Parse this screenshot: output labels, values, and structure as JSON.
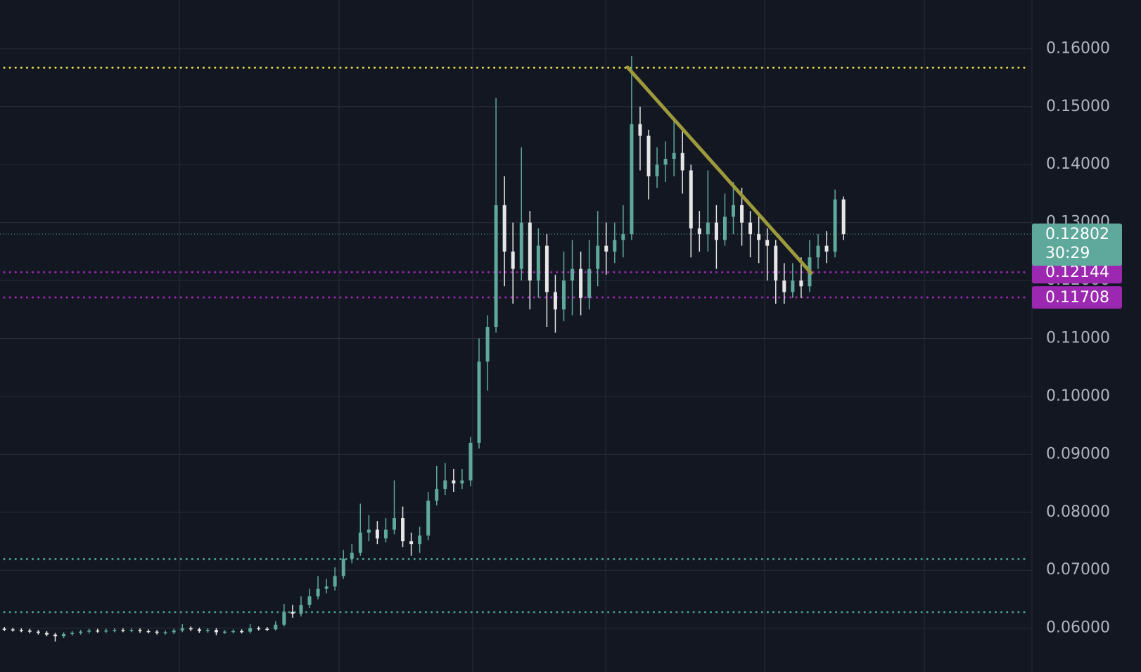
{
  "chart_data": {
    "type": "candlestick",
    "open": [
      0.0599,
      0.0598,
      0.0597,
      0.0596,
      0.0594,
      0.0592,
      0.0589,
      0.0586,
      0.059,
      0.0592,
      0.0594,
      0.0596,
      0.0595,
      0.0596,
      0.0597,
      0.0596,
      0.0597,
      0.0595,
      0.0594,
      0.0592,
      0.0593,
      0.0596,
      0.06,
      0.0598,
      0.0595,
      0.0597,
      0.0593,
      0.0594,
      0.0595,
      0.0594,
      0.06,
      0.0599,
      0.0598,
      0.0606,
      0.0628,
      0.0625,
      0.064,
      0.0655,
      0.0668,
      0.0672,
      0.069,
      0.072,
      0.073,
      0.0765,
      0.077,
      0.0755,
      0.077,
      0.079,
      0.075,
      0.0745,
      0.076,
      0.082,
      0.084,
      0.0855,
      0.085,
      0.0855,
      0.092,
      0.106,
      0.112,
      0.133,
      0.125,
      0.122,
      0.13,
      0.12,
      0.126,
      0.118,
      0.115,
      0.12,
      0.122,
      0.117,
      0.122,
      0.126,
      0.125,
      0.127,
      0.128,
      0.147,
      0.145,
      0.138,
      0.14,
      0.141,
      0.142,
      0.139,
      0.129,
      0.128,
      0.13,
      0.127,
      0.131,
      0.133,
      0.13,
      0.128,
      0.127,
      0.126,
      0.12,
      0.118,
      0.12,
      0.119,
      0.124,
      0.126,
      0.125,
      0.134
    ],
    "high": [
      0.0602,
      0.0601,
      0.06,
      0.0599,
      0.0597,
      0.0595,
      0.0592,
      0.0593,
      0.0595,
      0.0597,
      0.0599,
      0.0599,
      0.0599,
      0.06,
      0.06,
      0.06,
      0.06,
      0.0598,
      0.0597,
      0.0596,
      0.0599,
      0.0607,
      0.0603,
      0.0601,
      0.06,
      0.06,
      0.0597,
      0.0598,
      0.0598,
      0.0607,
      0.0603,
      0.0602,
      0.0612,
      0.0642,
      0.064,
      0.0655,
      0.0668,
      0.069,
      0.0685,
      0.0705,
      0.0735,
      0.0745,
      0.0815,
      0.0795,
      0.0785,
      0.079,
      0.0855,
      0.081,
      0.0765,
      0.0775,
      0.0835,
      0.088,
      0.0885,
      0.0875,
      0.0875,
      0.093,
      0.11,
      0.114,
      0.1515,
      0.138,
      0.13,
      0.143,
      0.132,
      0.129,
      0.128,
      0.121,
      0.125,
      0.127,
      0.125,
      0.127,
      0.132,
      0.13,
      0.13,
      0.133,
      0.1587,
      0.15,
      0.146,
      0.143,
      0.144,
      0.148,
      0.146,
      0.14,
      0.132,
      0.139,
      0.133,
      0.135,
      0.137,
      0.136,
      0.132,
      0.131,
      0.129,
      0.127,
      0.123,
      0.123,
      0.124,
      0.127,
      0.128,
      0.1285,
      0.1357,
      0.1345
    ],
    "low": [
      0.0595,
      0.0594,
      0.0593,
      0.0591,
      0.0589,
      0.0586,
      0.0577,
      0.0583,
      0.0587,
      0.0589,
      0.0591,
      0.0592,
      0.0592,
      0.0593,
      0.0593,
      0.0593,
      0.0592,
      0.0591,
      0.0589,
      0.0589,
      0.059,
      0.0593,
      0.0595,
      0.0592,
      0.0592,
      0.0588,
      0.059,
      0.0591,
      0.0591,
      0.0591,
      0.0596,
      0.0595,
      0.0596,
      0.0603,
      0.0618,
      0.062,
      0.0635,
      0.065,
      0.066,
      0.0665,
      0.0685,
      0.0712,
      0.0725,
      0.075,
      0.0745,
      0.0748,
      0.0762,
      0.074,
      0.0725,
      0.073,
      0.0752,
      0.0812,
      0.083,
      0.0835,
      0.084,
      0.0845,
      0.091,
      0.101,
      0.111,
      0.119,
      0.116,
      0.12,
      0.115,
      0.117,
      0.112,
      0.111,
      0.113,
      0.114,
      0.114,
      0.115,
      0.119,
      0.121,
      0.123,
      0.124,
      0.127,
      0.139,
      0.134,
      0.136,
      0.137,
      0.138,
      0.135,
      0.124,
      0.125,
      0.125,
      0.122,
      0.126,
      0.128,
      0.126,
      0.124,
      0.123,
      0.12,
      0.116,
      0.116,
      0.117,
      0.117,
      0.118,
      0.122,
      0.123,
      0.124,
      0.127
    ],
    "close": [
      0.0598,
      0.0597,
      0.0596,
      0.0594,
      0.0592,
      0.0589,
      0.0586,
      0.059,
      0.0592,
      0.0594,
      0.0596,
      0.0595,
      0.0596,
      0.0597,
      0.0596,
      0.0597,
      0.0595,
      0.0594,
      0.0592,
      0.0593,
      0.0596,
      0.06,
      0.0598,
      0.0595,
      0.0597,
      0.0593,
      0.0594,
      0.0595,
      0.0594,
      0.06,
      0.0599,
      0.0598,
      0.0606,
      0.0628,
      0.0625,
      0.064,
      0.0655,
      0.0668,
      0.0672,
      0.069,
      0.072,
      0.073,
      0.0765,
      0.077,
      0.0755,
      0.077,
      0.079,
      0.075,
      0.0745,
      0.076,
      0.082,
      0.084,
      0.0855,
      0.085,
      0.0855,
      0.092,
      0.106,
      0.112,
      0.133,
      0.125,
      0.122,
      0.13,
      0.12,
      0.126,
      0.118,
      0.115,
      0.12,
      0.122,
      0.117,
      0.122,
      0.126,
      0.125,
      0.127,
      0.128,
      0.147,
      0.145,
      0.138,
      0.14,
      0.141,
      0.142,
      0.139,
      0.129,
      0.128,
      0.13,
      0.127,
      0.131,
      0.133,
      0.13,
      0.128,
      0.127,
      0.126,
      0.12,
      0.118,
      0.12,
      0.119,
      0.124,
      0.126,
      0.125,
      0.134,
      0.128
    ],
    "up_color": "#5fa89c",
    "down_color": "#e6e6e6",
    "ylim": [
      0.05244,
      0.16841
    ],
    "yticks": [
      {
        "value": 0.06,
        "label": "0.06000"
      },
      {
        "value": 0.07,
        "label": "0.07000"
      },
      {
        "value": 0.08,
        "label": "0.08000"
      },
      {
        "value": 0.09,
        "label": "0.09000"
      },
      {
        "value": 0.1,
        "label": "0.10000"
      },
      {
        "value": 0.11,
        "label": "0.11000"
      },
      {
        "value": 0.12,
        "label": "0.12000"
      },
      {
        "value": 0.13,
        "label": "0.13000"
      },
      {
        "value": 0.14,
        "label": "0.14000"
      },
      {
        "value": 0.15,
        "label": "0.15000"
      },
      {
        "value": 0.16,
        "label": "0.16000"
      }
    ],
    "grid": true,
    "price_lines": [
      {
        "value": 0.15674,
        "color": "#e8dc4a"
      },
      {
        "value": 0.07192,
        "color": "#4a9e91"
      },
      {
        "value": 0.06276,
        "color": "#4a9e91"
      }
    ],
    "labeled_lines": [
      {
        "value": 0.12144,
        "color": "#9c27b0"
      },
      {
        "value": 0.11708,
        "color": "#9c27b0"
      }
    ],
    "current_price": {
      "value": 0.12802,
      "countdown": "30:29",
      "color": "#5fa89c"
    },
    "trend_line": {
      "start": 0.1568,
      "end": 0.1213,
      "color": "#9d9a3c"
    }
  }
}
